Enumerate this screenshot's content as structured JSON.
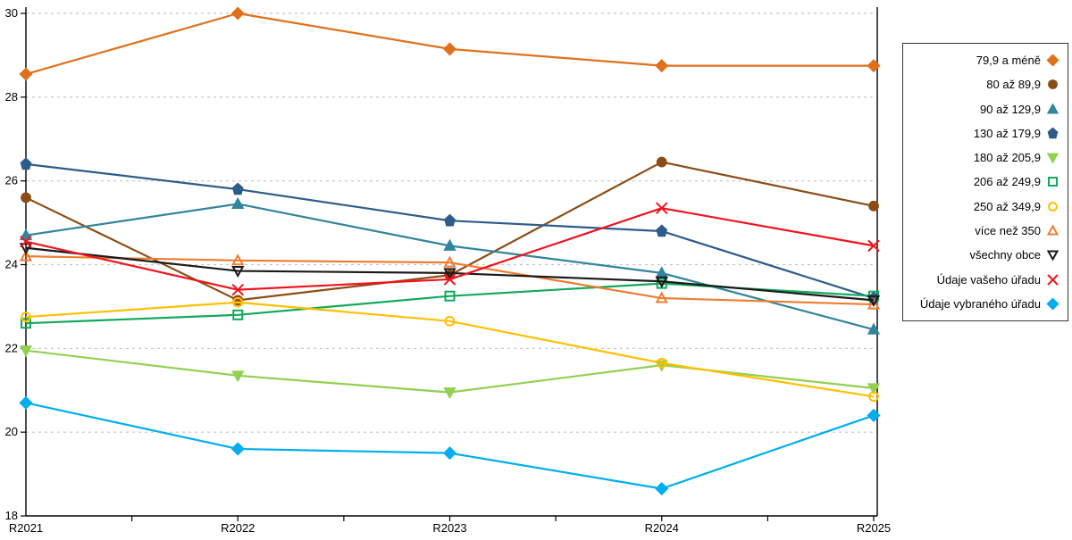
{
  "chart_data": {
    "type": "line",
    "title": "",
    "xlabel": "",
    "ylabel": "",
    "x_categories": [
      "R2021",
      "R2022",
      "R2023",
      "R2024",
      "R2025"
    ],
    "ylim": [
      18,
      30
    ],
    "yticks": [
      18,
      20,
      22,
      24,
      26,
      28,
      30
    ],
    "grid": "horizontal-dashed",
    "legend_position": "right",
    "grid_color": "#c3c3c3",
    "axis_color": "#000000",
    "series": [
      {
        "name": "79,9 a méně",
        "color": "#E0711C",
        "marker": "diamond",
        "fill": true,
        "values": [
          28.55,
          30.0,
          29.15,
          28.75,
          28.75
        ]
      },
      {
        "name": "80 až 89,9",
        "color": "#8C4D15",
        "marker": "circle",
        "fill": true,
        "values": [
          25.6,
          23.15,
          23.75,
          26.45,
          25.4
        ]
      },
      {
        "name": "90 až 129,9",
        "color": "#31859C",
        "marker": "triangle-up",
        "fill": true,
        "values": [
          24.7,
          25.45,
          24.45,
          23.8,
          22.45
        ]
      },
      {
        "name": "130 až 179,9",
        "color": "#2E5C8A",
        "marker": "pentagon",
        "fill": true,
        "values": [
          26.4,
          25.8,
          25.05,
          24.8,
          23.2
        ]
      },
      {
        "name": "180 až 205,9",
        "color": "#92D050",
        "marker": "triangle-down",
        "fill": true,
        "values": [
          21.95,
          21.35,
          20.95,
          21.6,
          21.05
        ]
      },
      {
        "name": "206 až 249,9",
        "color": "#12A85B",
        "marker": "square",
        "fill": false,
        "values": [
          22.6,
          22.8,
          23.25,
          23.55,
          23.25
        ]
      },
      {
        "name": "250 až 349,9",
        "color": "#FFC000",
        "marker": "circle",
        "fill": false,
        "values": [
          22.75,
          23.1,
          22.65,
          21.65,
          20.85
        ]
      },
      {
        "name": "více než 350",
        "color": "#ED7D31",
        "marker": "triangle-up",
        "fill": false,
        "values": [
          24.2,
          24.1,
          24.05,
          23.2,
          23.05
        ]
      },
      {
        "name": "všechny obce",
        "color": "#1A1A1A",
        "marker": "triangle-down",
        "fill": false,
        "values": [
          24.4,
          23.85,
          23.8,
          23.6,
          23.15
        ]
      },
      {
        "name": "Údaje vašeho úřadu",
        "color": "#F0141E",
        "marker": "x",
        "fill": false,
        "values": [
          24.55,
          23.4,
          23.65,
          25.35,
          24.45
        ]
      },
      {
        "name": "Údaje vybraného úřadu",
        "color": "#00AEEF",
        "marker": "diamond",
        "fill": true,
        "values": [
          20.7,
          19.6,
          19.5,
          18.65,
          20.4
        ]
      }
    ]
  }
}
